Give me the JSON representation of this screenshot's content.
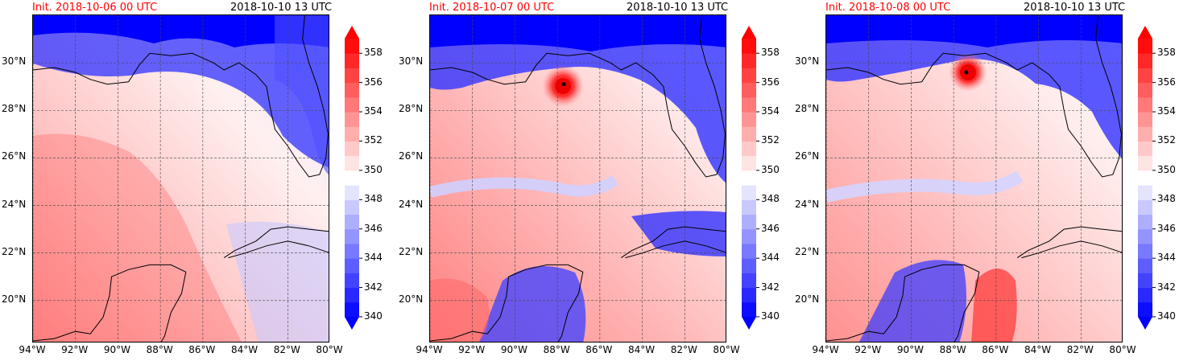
{
  "panels": [
    {
      "init_label": "Init. 2018-10-06 00 UTC",
      "valid_label": "2018-10-10 13 UTC",
      "storm": null
    },
    {
      "init_label": "Init. 2018-10-07 00 UTC",
      "valid_label": "2018-10-10 13 UTC",
      "storm": {
        "lon": -87.7,
        "lat": 29.1
      }
    },
    {
      "init_label": "Init. 2018-10-08 00 UTC",
      "valid_label": "2018-10-10 13 UTC",
      "storm": {
        "lon": -87.4,
        "lat": 29.6
      }
    }
  ],
  "lat_ticks": [
    "30°N",
    "28°N",
    "26°N",
    "24°N",
    "22°N",
    "20°N"
  ],
  "lon_ticks": [
    "94°W",
    "92°W",
    "90°W",
    "88°W",
    "86°W",
    "84°W",
    "82°W",
    "80°W"
  ],
  "colorbar": {
    "tick_labels": [
      "358",
      "356",
      "354",
      "352",
      "350",
      "348",
      "346",
      "344",
      "342",
      "340"
    ],
    "levels_min": 340,
    "levels_max": 359,
    "low_color": "#0000ff",
    "mid_color": "#ffffff",
    "high_color": "#ff0000",
    "extend": "both"
  },
  "map_extent": {
    "lon_min": -94,
    "lon_max": -80,
    "lat_min": 18.2,
    "lat_max": 32
  }
}
